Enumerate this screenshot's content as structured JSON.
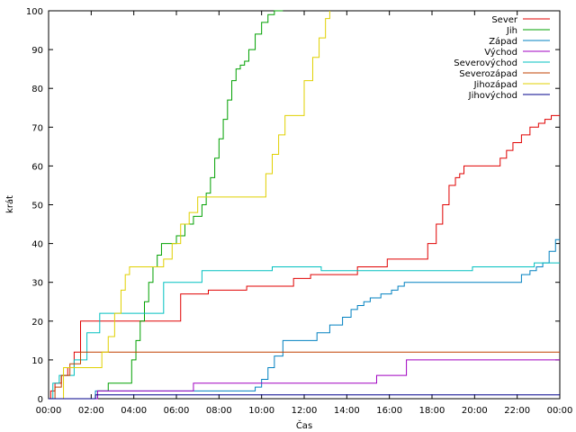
{
  "chart_data": {
    "type": "line",
    "title": "",
    "xlabel": "Čas",
    "ylabel": "krát",
    "xlim": [
      0,
      24
    ],
    "ylim": [
      0,
      100
    ],
    "xticks": [
      {
        "value": 0,
        "label": "00:00"
      },
      {
        "value": 2,
        "label": "02:00"
      },
      {
        "value": 4,
        "label": "04:00"
      },
      {
        "value": 6,
        "label": "06:00"
      },
      {
        "value": 8,
        "label": "08:00"
      },
      {
        "value": 10,
        "label": "10:00"
      },
      {
        "value": 12,
        "label": "12:00"
      },
      {
        "value": 14,
        "label": "14:00"
      },
      {
        "value": 16,
        "label": "16:00"
      },
      {
        "value": 18,
        "label": "18:00"
      },
      {
        "value": 20,
        "label": "20:00"
      },
      {
        "value": 22,
        "label": "22:00"
      },
      {
        "value": 24,
        "label": "00:00"
      }
    ],
    "yticks": [
      {
        "value": 0,
        "label": "0"
      },
      {
        "value": 10,
        "label": "10"
      },
      {
        "value": 20,
        "label": "20"
      },
      {
        "value": 30,
        "label": "30"
      },
      {
        "value": 40,
        "label": "40"
      },
      {
        "value": 50,
        "label": "50"
      },
      {
        "value": 60,
        "label": "60"
      },
      {
        "value": 70,
        "label": "70"
      },
      {
        "value": 80,
        "label": "80"
      },
      {
        "value": 90,
        "label": "90"
      },
      {
        "value": 100,
        "label": "100"
      }
    ],
    "grid": false,
    "legend": "top-right",
    "series": [
      {
        "name": "Sever",
        "color": "#e00000",
        "step": true,
        "x": [
          0,
          0.1,
          0.3,
          0.6,
          0.9,
          1.2,
          1.5,
          6.2,
          7.5,
          9.3,
          11.5,
          12.3,
          14.5,
          15.9,
          17.8,
          18.2,
          18.5,
          18.8,
          19.1,
          19.3,
          19.5,
          21.2,
          21.5,
          21.8,
          22.2,
          22.6,
          23.0,
          23.3,
          23.6,
          24
        ],
        "y": [
          0,
          2,
          4,
          6,
          8,
          12,
          20,
          27,
          28,
          29,
          31,
          32,
          34,
          36,
          40,
          45,
          50,
          55,
          57,
          58,
          60,
          62,
          64,
          66,
          68,
          70,
          71,
          72,
          73,
          73
        ]
      },
      {
        "name": "Jih",
        "color": "#00a000",
        "step": true,
        "x": [
          0,
          2.3,
          2.8,
          3.9,
          4.1,
          4.3,
          4.5,
          4.7,
          4.9,
          5.1,
          5.3,
          6.0,
          6.4,
          6.8,
          7.2,
          7.4,
          7.6,
          7.8,
          8.0,
          8.2,
          8.4,
          8.6,
          8.8,
          9.0,
          9.2,
          9.4,
          9.7,
          10.0,
          10.3,
          10.6,
          11.0
        ],
        "y": [
          0,
          2,
          4,
          10,
          15,
          20,
          25,
          30,
          34,
          37,
          40,
          42,
          45,
          47,
          50,
          53,
          57,
          62,
          67,
          72,
          77,
          82,
          85,
          86,
          87,
          90,
          94,
          97,
          99,
          100,
          100
        ]
      },
      {
        "name": "Západ",
        "color": "#0080c0",
        "step": true,
        "x": [
          0,
          2.2,
          9.7,
          10.0,
          10.3,
          10.6,
          11.0,
          11.8,
          12.6,
          13.2,
          13.8,
          14.2,
          14.5,
          14.8,
          15.1,
          15.6,
          16.1,
          16.4,
          16.7,
          17.0,
          17.2,
          22.2,
          22.6,
          22.9,
          23.2,
          23.5,
          23.8,
          24
        ],
        "y": [
          0,
          2,
          3,
          5,
          8,
          11,
          15,
          15,
          17,
          19,
          21,
          23,
          24,
          25,
          26,
          27,
          28,
          29,
          30,
          30,
          30,
          32,
          33,
          34,
          35,
          38,
          41,
          41
        ]
      },
      {
        "name": "Východ",
        "color": "#a000c0",
        "step": true,
        "x": [
          0,
          2.3,
          6.8,
          10.0,
          12.5,
          14.0,
          15.4,
          16.8,
          17.2,
          24
        ],
        "y": [
          0,
          2,
          4,
          4,
          4,
          4,
          6,
          10,
          10,
          10
        ]
      },
      {
        "name": "Severovýchod",
        "color": "#00c0c0",
        "step": true,
        "x": [
          0,
          0.2,
          0.5,
          1.2,
          1.8,
          2.4,
          5.4,
          7.2,
          10.5,
          12.8,
          15.2,
          19.9,
          22.8,
          24
        ],
        "y": [
          0,
          4,
          6,
          10,
          17,
          22,
          30,
          33,
          34,
          33,
          33,
          34,
          35,
          35
        ]
      },
      {
        "name": "Severozápad",
        "color": "#c04000",
        "step": true,
        "x": [
          0,
          0.3,
          0.6,
          1.0,
          1.5,
          24
        ],
        "y": [
          0,
          3,
          6,
          9,
          12,
          12
        ]
      },
      {
        "name": "Jihozápad",
        "color": "#e0d000",
        "step": true,
        "x": [
          0,
          0.7,
          2.5,
          2.8,
          3.1,
          3.4,
          3.6,
          3.8,
          5.4,
          5.8,
          6.2,
          6.6,
          7.0,
          9.9,
          10.2,
          10.5,
          10.8,
          11.1,
          11.4,
          12.0,
          12.4,
          12.7,
          13.0,
          13.2
        ],
        "y": [
          0,
          8,
          12,
          16,
          22,
          28,
          32,
          34,
          36,
          40,
          45,
          48,
          52,
          52,
          58,
          63,
          68,
          73,
          73,
          82,
          88,
          93,
          98,
          100
        ]
      },
      {
        "name": "Jihovýchod",
        "color": "#00008b",
        "step": true,
        "x": [
          0,
          2.2,
          24
        ],
        "y": [
          0,
          1,
          1
        ]
      }
    ]
  }
}
